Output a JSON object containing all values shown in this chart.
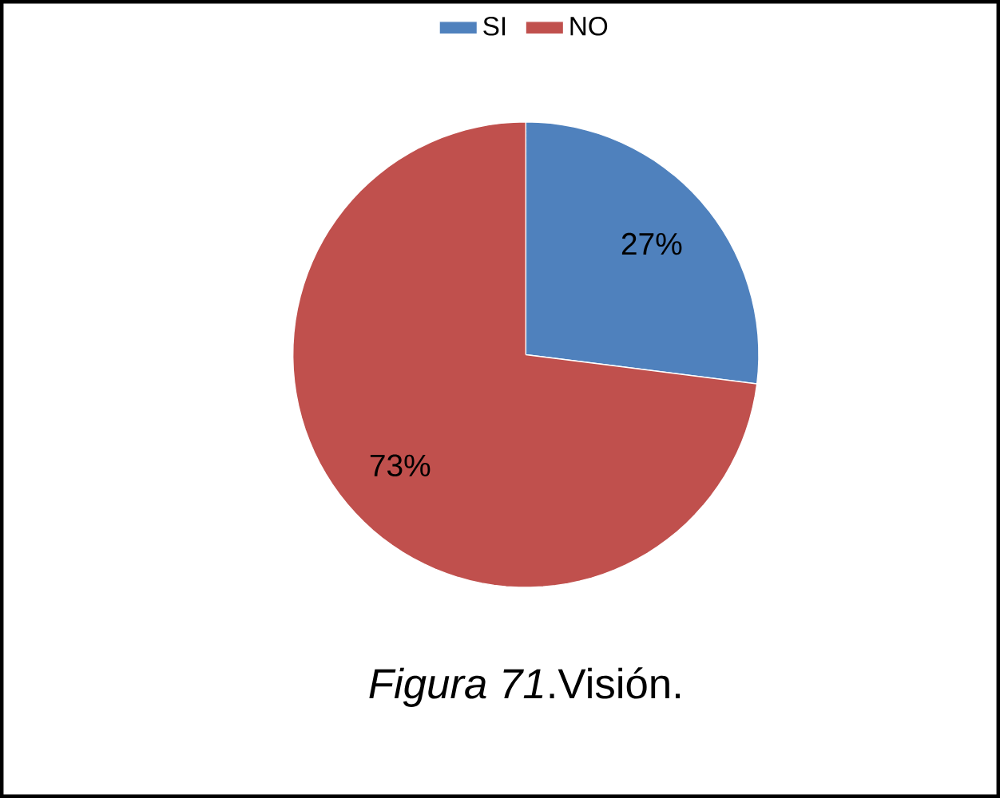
{
  "chart_data": {
    "type": "pie",
    "categories": [
      "SI",
      "NO"
    ],
    "values": [
      27,
      73
    ],
    "colors": [
      "#4f81bd",
      "#c0504d"
    ],
    "value_labels": [
      "27%",
      "73%"
    ],
    "legend": "top",
    "annotations": [
      "*Figura 71*.Visión."
    ]
  }
}
